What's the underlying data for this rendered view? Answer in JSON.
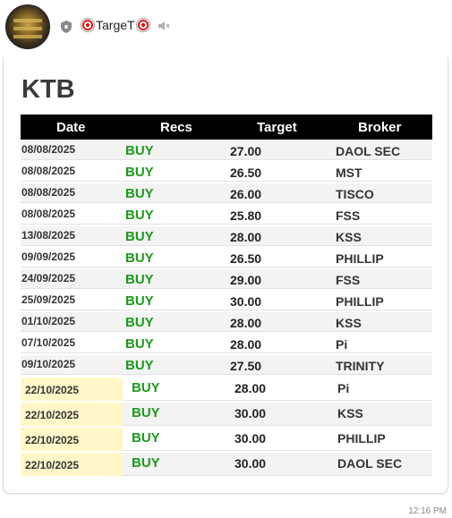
{
  "channel": {
    "title": "TargeT",
    "icons": {
      "verified": "shield-icon",
      "prefix": "target-icon",
      "suffix": "target-icon",
      "muted": "speaker-mute-icon"
    }
  },
  "post": {
    "ticker": "KTB",
    "timestamp": "12:16 PM"
  },
  "table": {
    "headers": {
      "date": "Date",
      "recs": "Recs",
      "target": "Target",
      "broker": "Broker"
    },
    "rows": [
      {
        "date": "08/08/2025",
        "rec": "BUY",
        "target": "27.00",
        "broker": "DAOL SEC"
      },
      {
        "date": "08/08/2025",
        "rec": "BUY",
        "target": "26.50",
        "broker": "MST"
      },
      {
        "date": "08/08/2025",
        "rec": "BUY",
        "target": "26.00",
        "broker": "TISCO"
      },
      {
        "date": "08/08/2025",
        "rec": "BUY",
        "target": "25.80",
        "broker": "FSS"
      },
      {
        "date": "13/08/2025",
        "rec": "BUY",
        "target": "28.00",
        "broker": "KSS"
      },
      {
        "date": "09/09/2025",
        "rec": "BUY",
        "target": "26.50",
        "broker": "PHILLIP"
      },
      {
        "date": "24/09/2025",
        "rec": "BUY",
        "target": "29.00",
        "broker": "FSS"
      },
      {
        "date": "25/09/2025",
        "rec": "BUY",
        "target": "30.00",
        "broker": "PHILLIP"
      },
      {
        "date": "01/10/2025",
        "rec": "BUY",
        "target": "28.00",
        "broker": "KSS"
      },
      {
        "date": "07/10/2025",
        "rec": "BUY",
        "target": "28.00",
        "broker": "Pi"
      },
      {
        "date": "09/10/2025",
        "rec": "BUY",
        "target": "27.50",
        "broker": "TRINITY"
      }
    ],
    "highlight_rows": [
      {
        "date": "22/10/2025",
        "rec": "BUY",
        "target": "28.00",
        "broker": "Pi"
      },
      {
        "date": "22/10/2025",
        "rec": "BUY",
        "target": "30.00",
        "broker": "KSS"
      },
      {
        "date": "22/10/2025",
        "rec": "BUY",
        "target": "30.00",
        "broker": "PHILLIP"
      },
      {
        "date": "22/10/2025",
        "rec": "BUY",
        "target": "30.00",
        "broker": "DAOL SEC"
      }
    ]
  },
  "colors": {
    "buy": "#1a9a1a",
    "highlight": "#fff7c8",
    "header_bg": "#000000"
  }
}
